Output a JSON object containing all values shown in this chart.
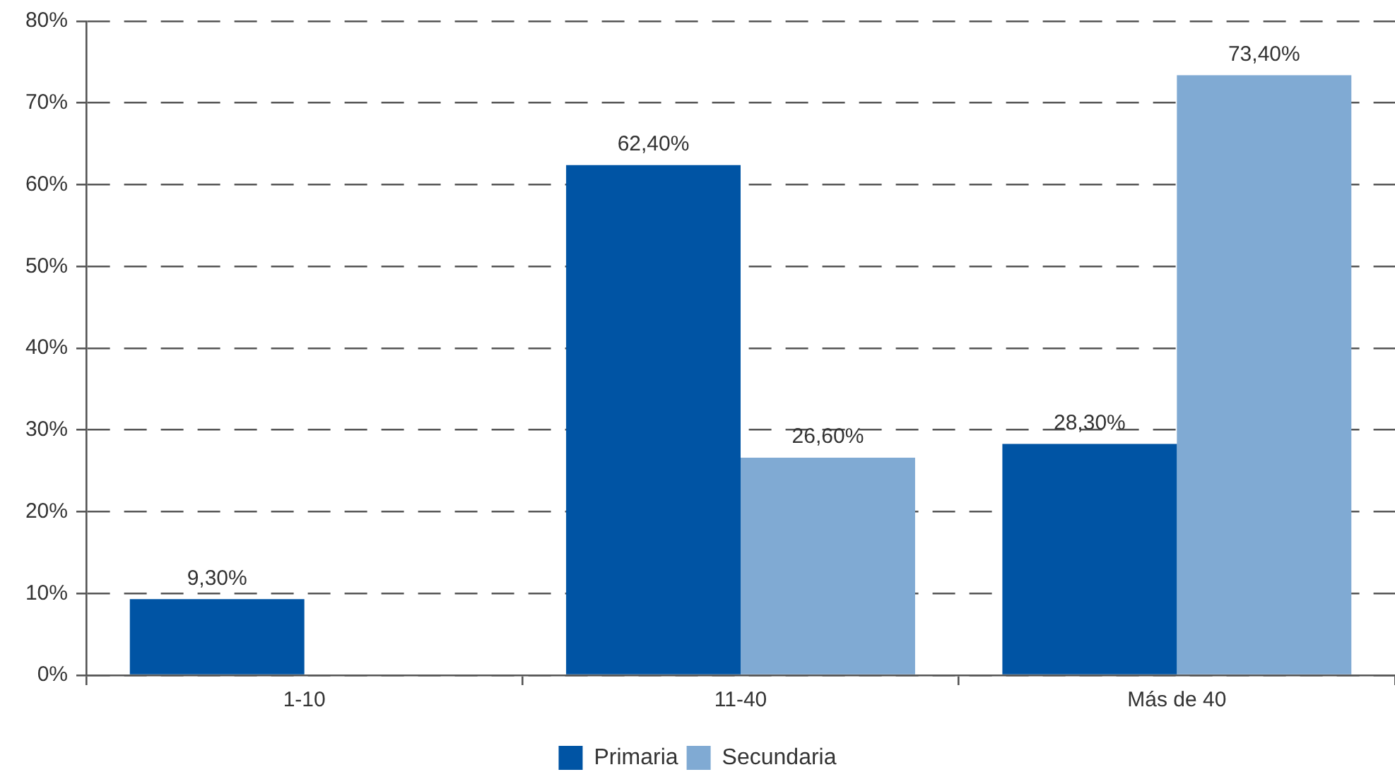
{
  "chart_data": {
    "type": "bar",
    "categories": [
      "1-10",
      "11-40",
      "Más de 40"
    ],
    "series": [
      {
        "name": "Primaria",
        "color": "#0054a4",
        "values": [
          9.3,
          62.4,
          28.3
        ],
        "value_labels": [
          "9,30%",
          "62,40%",
          "28,30%"
        ]
      },
      {
        "name": "Secundaria",
        "color": "#80aad3",
        "values": [
          null,
          26.6,
          73.4
        ],
        "value_labels": [
          null,
          "26,60%",
          "73,40%"
        ]
      }
    ],
    "ylim": [
      0,
      80
    ],
    "yticks": [
      {
        "value": 0,
        "label": "0%"
      },
      {
        "value": 10,
        "label": "10%"
      },
      {
        "value": 20,
        "label": "20%"
      },
      {
        "value": 30,
        "label": "30%"
      },
      {
        "value": 40,
        "label": "40%"
      },
      {
        "value": 50,
        "label": "50%"
      },
      {
        "value": 60,
        "label": "60%"
      },
      {
        "value": 70,
        "label": "70%"
      },
      {
        "value": 80,
        "label": "80%"
      }
    ],
    "grid": "y",
    "legend": "bottom"
  }
}
